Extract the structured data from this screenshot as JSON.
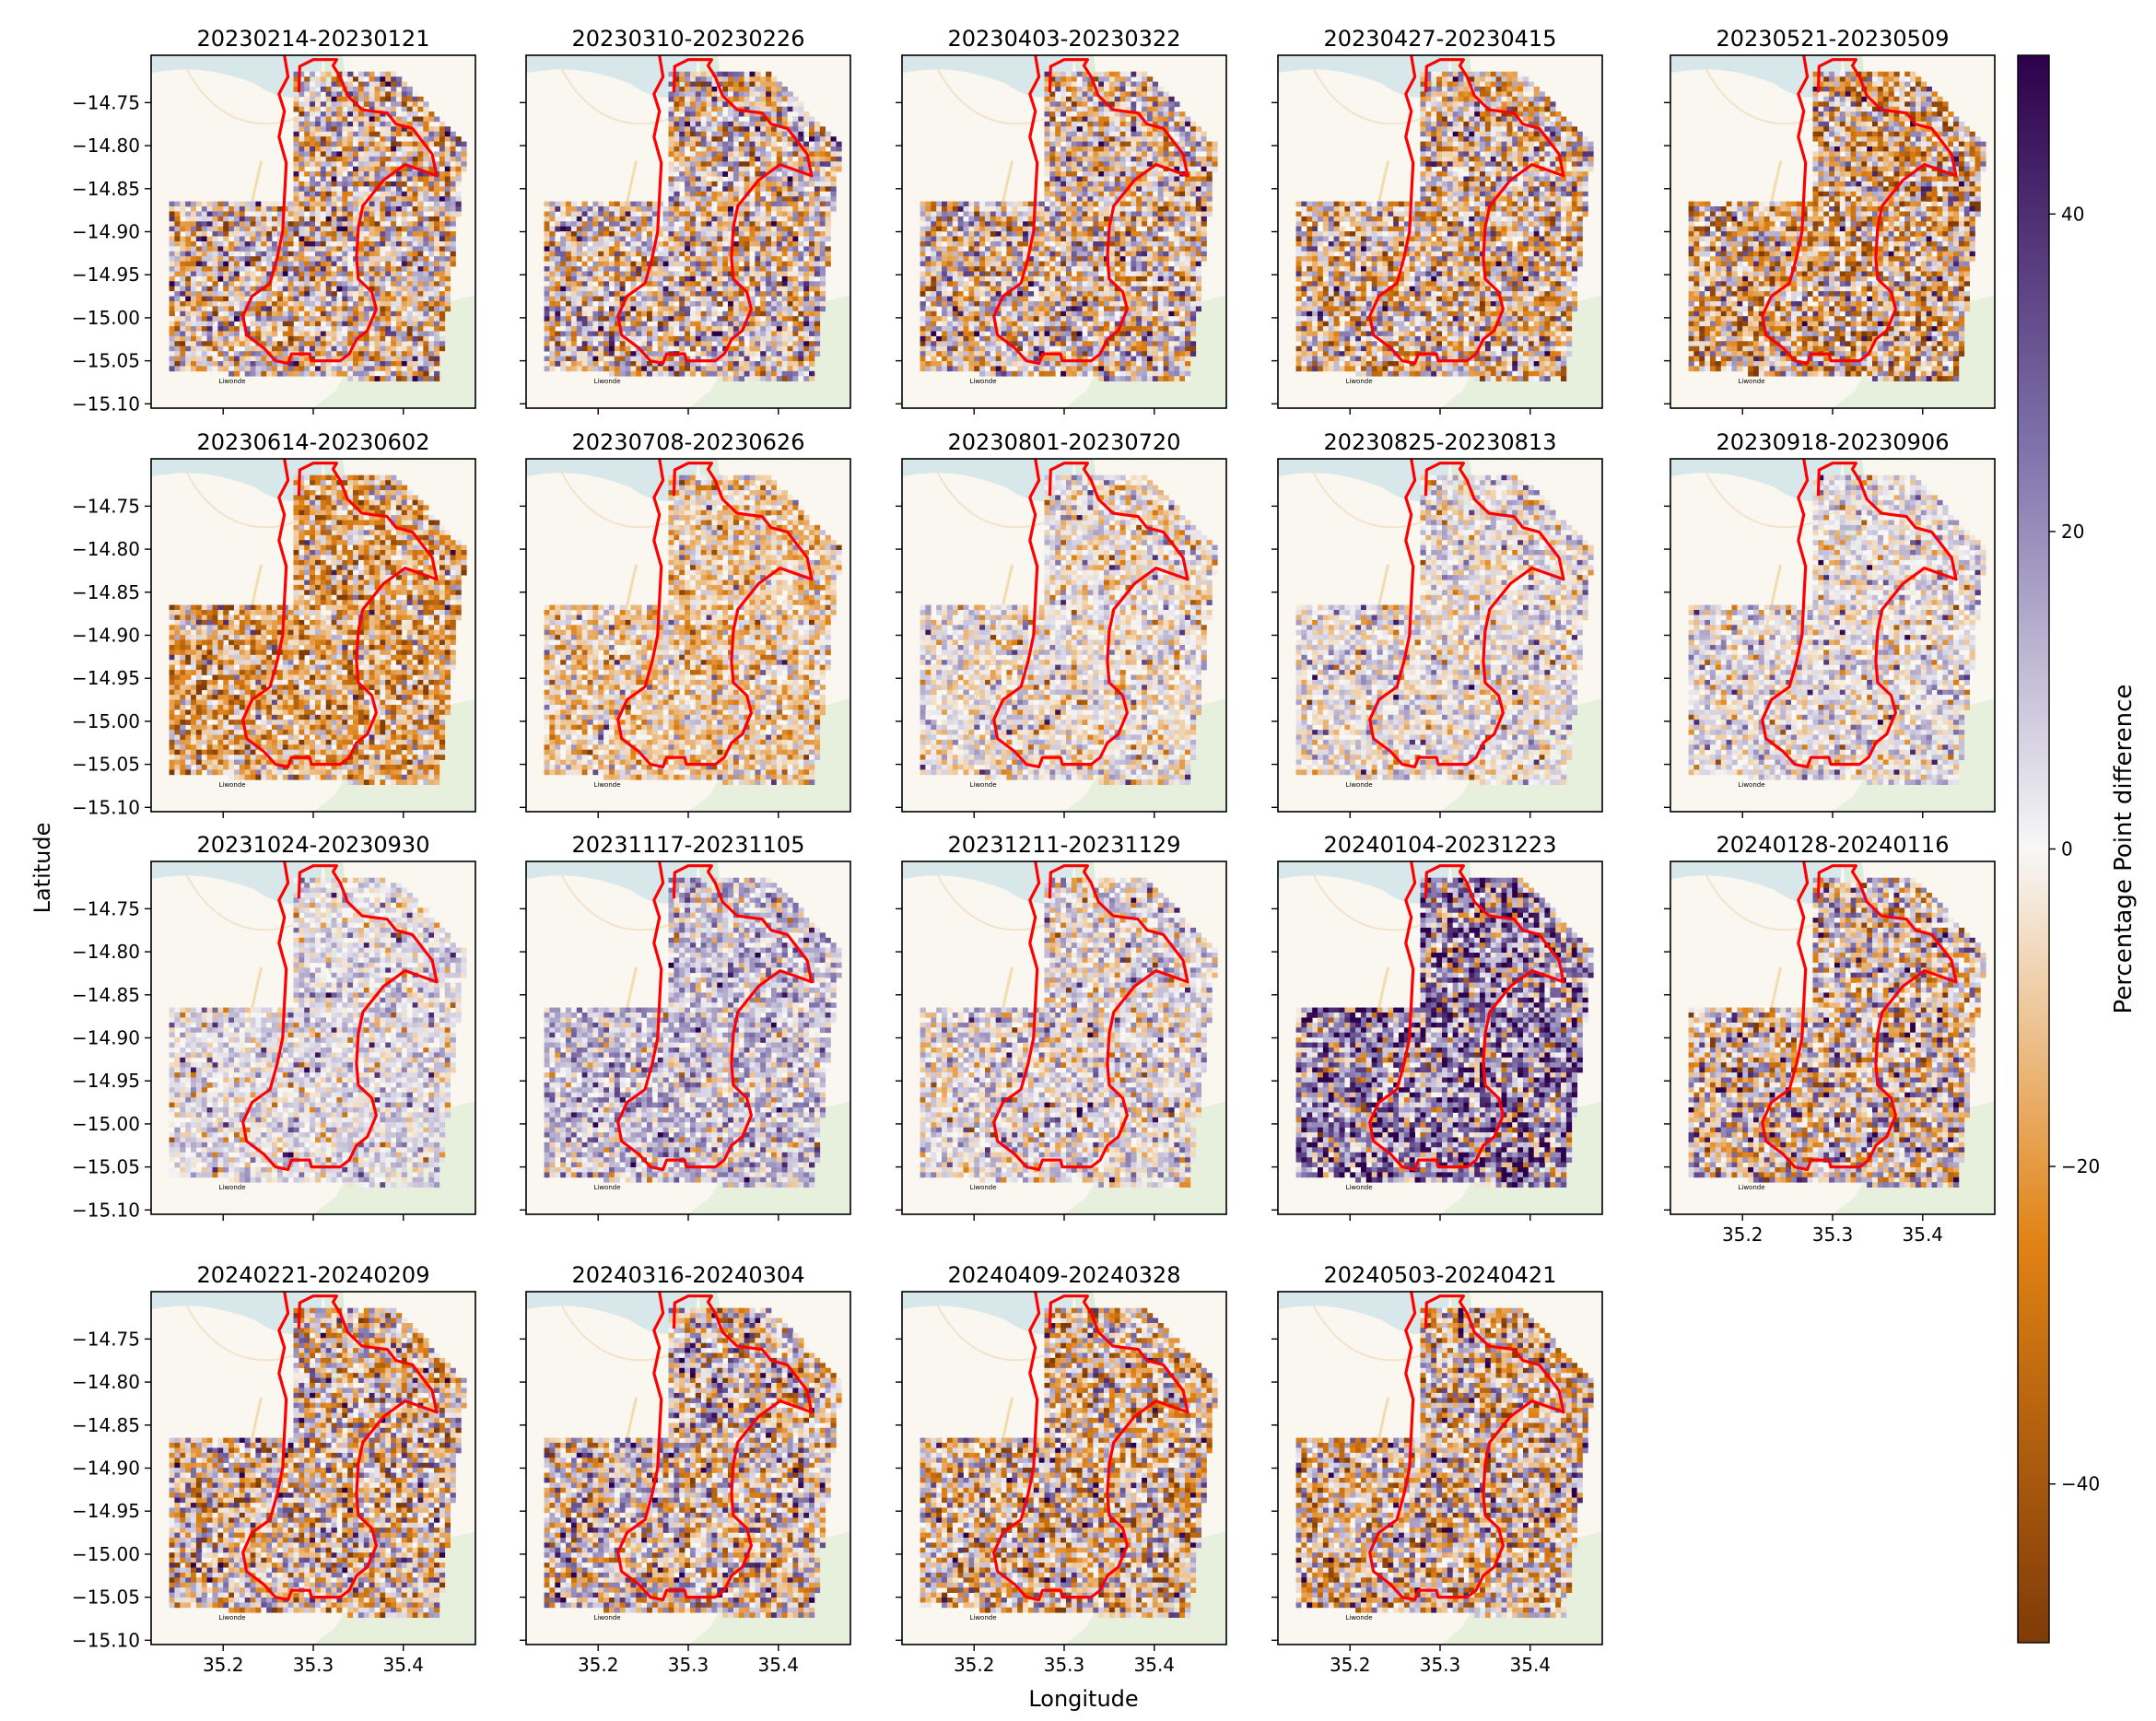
{
  "chart_data": {
    "type": "heatmap",
    "layout": {
      "rows": 4,
      "cols": 5
    },
    "xlabel": "Longitude",
    "ylabel": "Latitude",
    "xlim": [
      35.12,
      35.48
    ],
    "ylim": [
      -15.105,
      -14.695
    ],
    "xticks": [
      35.2,
      35.3,
      35.4
    ],
    "xtick_labels": [
      "35.2",
      "35.3",
      "35.4"
    ],
    "yticks": [
      -14.75,
      -14.8,
      -14.85,
      -14.9,
      -14.95,
      -15.0,
      -15.05,
      -15.1
    ],
    "ytick_labels": [
      "−14.75",
      "−14.80",
      "−14.85",
      "−14.90",
      "−14.95",
      "−15.00",
      "−15.05",
      "−15.10"
    ],
    "colorbar": {
      "label": "Percentage Point difference",
      "range": [
        -50,
        50
      ],
      "ticks": [
        40,
        20,
        0,
        -20,
        -40
      ],
      "tick_labels": [
        "40",
        "20",
        "0",
        "−20",
        "−40"
      ],
      "colormap": "PuOr",
      "colors": {
        "min": "#7f3b08",
        "low": "#e08214",
        "mid": "#f7f7f7",
        "high": "#8073ac",
        "max": "#2d004b"
      }
    },
    "boundary_color": "#ff0000",
    "map_label": "Liwonde",
    "panels": [
      {
        "title": "20230214-20230121",
        "spread": 0.55,
        "bias": -0.05
      },
      {
        "title": "20230310-20230226",
        "spread": 0.55,
        "bias": 0.0
      },
      {
        "title": "20230403-20230322",
        "spread": 0.55,
        "bias": -0.05
      },
      {
        "title": "20230427-20230415",
        "spread": 0.55,
        "bias": -0.1
      },
      {
        "title": "20230521-20230509",
        "spread": 0.6,
        "bias": -0.2
      },
      {
        "title": "20230614-20230602",
        "spread": 0.45,
        "bias": -0.3
      },
      {
        "title": "20230708-20230626",
        "spread": 0.3,
        "bias": -0.15
      },
      {
        "title": "20230801-20230720",
        "spread": 0.25,
        "bias": 0.0
      },
      {
        "title": "20230825-20230813",
        "spread": 0.25,
        "bias": 0.02
      },
      {
        "title": "20230918-20230906",
        "spread": 0.25,
        "bias": 0.05
      },
      {
        "title": "20231024-20230930",
        "spread": 0.2,
        "bias": 0.08
      },
      {
        "title": "20231117-20231105",
        "spread": 0.3,
        "bias": 0.18
      },
      {
        "title": "20231211-20231129",
        "spread": 0.3,
        "bias": 0.05
      },
      {
        "title": "20240104-20231223",
        "spread": 0.6,
        "bias": 0.38
      },
      {
        "title": "20240128-20240116",
        "spread": 0.55,
        "bias": 0.0
      },
      {
        "title": "20240221-20240209",
        "spread": 0.55,
        "bias": -0.08
      },
      {
        "title": "20240316-20240304",
        "spread": 0.55,
        "bias": 0.0
      },
      {
        "title": "20240409-20240328",
        "spread": 0.55,
        "bias": -0.12
      },
      {
        "title": "20240503-20240421",
        "spread": 0.55,
        "bias": -0.1
      }
    ],
    "boundary_lonlat": [
      [
        35.268,
        -14.695
      ],
      [
        35.272,
        -14.72
      ],
      [
        35.262,
        -14.74
      ],
      [
        35.268,
        -14.76
      ],
      [
        35.262,
        -14.79
      ],
      [
        35.27,
        -14.82
      ],
      [
        35.268,
        -14.86
      ],
      [
        35.266,
        -14.9
      ],
      [
        35.26,
        -14.93
      ],
      [
        35.252,
        -14.96
      ],
      [
        35.232,
        -14.975
      ],
      [
        35.222,
        -14.998
      ],
      [
        35.226,
        -15.02
      ],
      [
        35.245,
        -15.035
      ],
      [
        35.258,
        -15.05
      ],
      [
        35.272,
        -15.053
      ],
      [
        35.276,
        -15.042
      ],
      [
        35.296,
        -15.042
      ],
      [
        35.298,
        -15.05
      ],
      [
        35.33,
        -15.05
      ],
      [
        35.34,
        -15.042
      ],
      [
        35.348,
        -15.025
      ],
      [
        35.36,
        -15.015
      ],
      [
        35.37,
        -14.99
      ],
      [
        35.365,
        -14.97
      ],
      [
        35.35,
        -14.955
      ],
      [
        35.348,
        -14.93
      ],
      [
        35.35,
        -14.895
      ],
      [
        35.355,
        -14.87
      ],
      [
        35.378,
        -14.84
      ],
      [
        35.402,
        -14.822
      ],
      [
        35.437,
        -14.835
      ],
      [
        35.432,
        -14.81
      ],
      [
        35.41,
        -14.78
      ],
      [
        35.392,
        -14.775
      ],
      [
        35.382,
        -14.762
      ],
      [
        35.366,
        -14.76
      ],
      [
        35.354,
        -14.758
      ],
      [
        35.338,
        -14.742
      ],
      [
        35.33,
        -14.72
      ],
      [
        35.322,
        -14.707
      ],
      [
        35.326,
        -14.7
      ],
      [
        35.3,
        -14.7
      ],
      [
        35.285,
        -14.708
      ],
      [
        35.284,
        -14.738
      ]
    ]
  }
}
